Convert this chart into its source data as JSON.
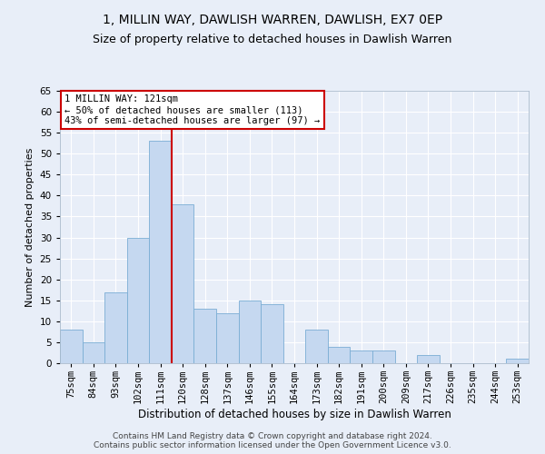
{
  "title1": "1, MILLIN WAY, DAWLISH WARREN, DAWLISH, EX7 0EP",
  "title2": "Size of property relative to detached houses in Dawlish Warren",
  "xlabel": "Distribution of detached houses by size in Dawlish Warren",
  "ylabel": "Number of detached properties",
  "categories": [
    "75sqm",
    "84sqm",
    "93sqm",
    "102sqm",
    "111sqm",
    "120sqm",
    "128sqm",
    "137sqm",
    "146sqm",
    "155sqm",
    "164sqm",
    "173sqm",
    "182sqm",
    "191sqm",
    "200sqm",
    "209sqm",
    "217sqm",
    "226sqm",
    "235sqm",
    "244sqm",
    "253sqm"
  ],
  "values": [
    8,
    5,
    17,
    30,
    53,
    38,
    13,
    12,
    15,
    14,
    0,
    8,
    4,
    3,
    3,
    0,
    2,
    0,
    0,
    0,
    1
  ],
  "bar_color": "#c5d8f0",
  "bar_edge_color": "#7aadd4",
  "background_color": "#e8eef8",
  "grid_color": "#ffffff",
  "vline_index": 4,
  "vline_color": "#cc0000",
  "annotation_text": "1 MILLIN WAY: 121sqm\n← 50% of detached houses are smaller (113)\n43% of semi-detached houses are larger (97) →",
  "annotation_box_facecolor": "#ffffff",
  "annotation_box_edgecolor": "#cc0000",
  "ylim": [
    0,
    65
  ],
  "yticks": [
    0,
    5,
    10,
    15,
    20,
    25,
    30,
    35,
    40,
    45,
    50,
    55,
    60,
    65
  ],
  "footer1": "Contains HM Land Registry data © Crown copyright and database right 2024.",
  "footer2": "Contains public sector information licensed under the Open Government Licence v3.0.",
  "title1_fontsize": 10,
  "title2_fontsize": 9,
  "xlabel_fontsize": 8.5,
  "ylabel_fontsize": 8,
  "tick_fontsize": 7.5,
  "annotation_fontsize": 7.5,
  "footer_fontsize": 6.5
}
